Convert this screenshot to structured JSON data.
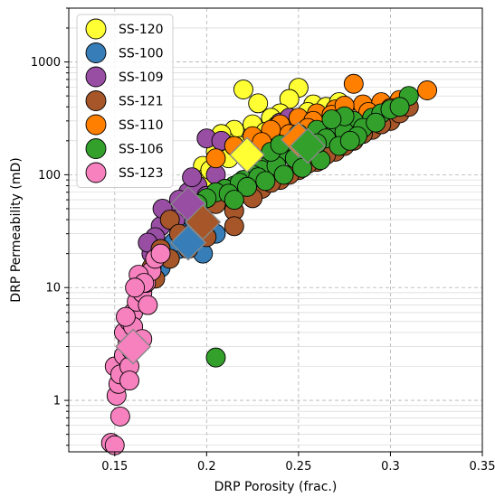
{
  "chart_data": {
    "type": "scatter",
    "xlabel": "DRP Porosity (frac.)",
    "ylabel": "DRP Permeability (mD)",
    "xlim": [
      0.125,
      0.35
    ],
    "ylim": [
      0.35,
      3000
    ],
    "y_scale": "log",
    "x_ticks": [
      0.15,
      0.2,
      0.25,
      0.3,
      0.35
    ],
    "x_tick_labels": [
      "0.15",
      "0.2",
      "0.25",
      "0.3",
      "0.35"
    ],
    "y_ticks": [
      1,
      10,
      100,
      1000
    ],
    "y_tick_labels": [
      "1",
      "10",
      "100",
      "1000"
    ],
    "grid": true,
    "legend_position": "top-left",
    "series": [
      {
        "name": "SS-120",
        "color": "#ffff33",
        "mean": [
          0.222,
          150
        ],
        "points": [
          [
            0.22,
            570
          ],
          [
            0.25,
            590
          ],
          [
            0.228,
            430
          ],
          [
            0.245,
            470
          ],
          [
            0.258,
            420
          ],
          [
            0.265,
            400
          ],
          [
            0.24,
            350
          ],
          [
            0.235,
            320
          ],
          [
            0.225,
            280
          ],
          [
            0.215,
            250
          ],
          [
            0.21,
            200
          ],
          [
            0.205,
            160
          ],
          [
            0.198,
            120
          ],
          [
            0.2,
            95
          ],
          [
            0.218,
            180
          ],
          [
            0.232,
            240
          ],
          [
            0.248,
            300
          ],
          [
            0.268,
            330
          ],
          [
            0.275,
            380
          ],
          [
            0.272,
            440
          ],
          [
            0.255,
            360
          ],
          [
            0.238,
            270
          ],
          [
            0.212,
            140
          ],
          [
            0.202,
            110
          ],
          [
            0.208,
            230
          ],
          [
            0.226,
            200
          ],
          [
            0.228,
            160
          ],
          [
            0.262,
            310
          ]
        ]
      },
      {
        "name": "SS-100",
        "color": "#377eb8",
        "mean": [
          0.19,
          25
        ],
        "points": [
          [
            0.185,
            22
          ],
          [
            0.195,
            28
          ],
          [
            0.2,
            32
          ],
          [
            0.178,
            18
          ],
          [
            0.182,
            25
          ],
          [
            0.19,
            35
          ],
          [
            0.198,
            20
          ],
          [
            0.205,
            30
          ],
          [
            0.175,
            15
          ],
          [
            0.193,
            40
          ]
        ]
      },
      {
        "name": "SS-109",
        "color": "#984ea3",
        "mean": [
          0.19,
          55
        ],
        "points": [
          [
            0.2,
            210
          ],
          [
            0.208,
            200
          ],
          [
            0.215,
            180
          ],
          [
            0.24,
            290
          ],
          [
            0.245,
            320
          ],
          [
            0.19,
            70
          ],
          [
            0.185,
            60
          ],
          [
            0.18,
            45
          ],
          [
            0.175,
            35
          ],
          [
            0.172,
            28
          ],
          [
            0.17,
            20
          ],
          [
            0.195,
            80
          ],
          [
            0.168,
            25
          ],
          [
            0.176,
            50
          ],
          [
            0.183,
            40
          ],
          [
            0.2,
            65
          ],
          [
            0.192,
            95
          ],
          [
            0.205,
            100
          ]
        ]
      },
      {
        "name": "SS-121",
        "color": "#a65628",
        "mean": [
          0.198,
          38
        ],
        "points": [
          [
            0.18,
            40
          ],
          [
            0.19,
            50
          ],
          [
            0.2,
            60
          ],
          [
            0.21,
            65
          ],
          [
            0.22,
            70
          ],
          [
            0.23,
            75
          ],
          [
            0.24,
            90
          ],
          [
            0.25,
            110
          ],
          [
            0.26,
            130
          ],
          [
            0.27,
            160
          ],
          [
            0.28,
            200
          ],
          [
            0.29,
            250
          ],
          [
            0.3,
            300
          ],
          [
            0.185,
            30
          ],
          [
            0.175,
            22
          ],
          [
            0.17,
            15
          ],
          [
            0.172,
            12
          ],
          [
            0.195,
            45
          ],
          [
            0.205,
            55
          ],
          [
            0.215,
            48
          ],
          [
            0.225,
            62
          ],
          [
            0.235,
            85
          ],
          [
            0.245,
            100
          ],
          [
            0.255,
            125
          ],
          [
            0.265,
            150
          ],
          [
            0.275,
            180
          ],
          [
            0.285,
            230
          ],
          [
            0.295,
            280
          ],
          [
            0.305,
            350
          ],
          [
            0.31,
            400
          ],
          [
            0.215,
            35
          ],
          [
            0.2,
            28
          ],
          [
            0.19,
            22
          ],
          [
            0.18,
            18
          ]
        ]
      },
      {
        "name": "SS-110",
        "color": "#ff7f00",
        "mean": [
          0.25,
          205
        ],
        "points": [
          [
            0.28,
            640
          ],
          [
            0.32,
            560
          ],
          [
            0.305,
            460
          ],
          [
            0.285,
            420
          ],
          [
            0.27,
            380
          ],
          [
            0.26,
            350
          ],
          [
            0.25,
            320
          ],
          [
            0.24,
            280
          ],
          [
            0.235,
            250
          ],
          [
            0.225,
            220
          ],
          [
            0.215,
            180
          ],
          [
            0.205,
            140
          ],
          [
            0.258,
            300
          ],
          [
            0.268,
            340
          ],
          [
            0.295,
            440
          ],
          [
            0.3,
            390
          ],
          [
            0.245,
            230
          ],
          [
            0.255,
            260
          ],
          [
            0.275,
            410
          ],
          [
            0.288,
            360
          ],
          [
            0.23,
            195
          ]
        ]
      },
      {
        "name": "SS-106",
        "color": "#33a02c",
        "mean": [
          0.255,
          180
        ],
        "points": [
          [
            0.205,
            2.4
          ],
          [
            0.31,
            500
          ],
          [
            0.29,
            320
          ],
          [
            0.28,
            300
          ],
          [
            0.27,
            280
          ],
          [
            0.26,
            250
          ],
          [
            0.25,
            200
          ],
          [
            0.245,
            170
          ],
          [
            0.24,
            150
          ],
          [
            0.235,
            130
          ],
          [
            0.23,
            110
          ],
          [
            0.225,
            100
          ],
          [
            0.22,
            90
          ],
          [
            0.215,
            80
          ],
          [
            0.21,
            75
          ],
          [
            0.205,
            70
          ],
          [
            0.2,
            62
          ],
          [
            0.195,
            55
          ],
          [
            0.265,
            210
          ],
          [
            0.275,
            240
          ],
          [
            0.285,
            260
          ],
          [
            0.295,
            350
          ],
          [
            0.3,
            380
          ],
          [
            0.255,
            160
          ],
          [
            0.248,
            140
          ],
          [
            0.238,
            120
          ],
          [
            0.228,
            95
          ],
          [
            0.218,
            85
          ],
          [
            0.212,
            68
          ],
          [
            0.222,
            78
          ],
          [
            0.232,
            88
          ],
          [
            0.242,
            100
          ],
          [
            0.252,
            115
          ],
          [
            0.262,
            135
          ],
          [
            0.272,
            180
          ],
          [
            0.282,
            220
          ],
          [
            0.292,
            290
          ],
          [
            0.305,
            400
          ],
          [
            0.235,
            160
          ],
          [
            0.25,
            230
          ],
          [
            0.26,
            190
          ],
          [
            0.24,
            185
          ],
          [
            0.215,
            60
          ],
          [
            0.275,
            330
          ],
          [
            0.268,
            310
          ],
          [
            0.278,
            200
          ]
        ]
      },
      {
        "name": "SS-123",
        "color": "#f781bf",
        "mean": [
          0.16,
          3.0
        ],
        "points": [
          [
            0.148,
            0.42
          ],
          [
            0.15,
            0.4
          ],
          [
            0.153,
            0.72
          ],
          [
            0.151,
            1.1
          ],
          [
            0.152,
            1.4
          ],
          [
            0.15,
            2.0
          ],
          [
            0.153,
            1.7
          ],
          [
            0.155,
            2.5
          ],
          [
            0.157,
            3.2
          ],
          [
            0.155,
            4.0
          ],
          [
            0.158,
            5.0
          ],
          [
            0.16,
            6.0
          ],
          [
            0.162,
            7.5
          ],
          [
            0.165,
            9.0
          ],
          [
            0.167,
            11
          ],
          [
            0.17,
            14
          ],
          [
            0.172,
            18
          ],
          [
            0.175,
            20
          ],
          [
            0.163,
            13
          ],
          [
            0.158,
            2.0
          ],
          [
            0.158,
            1.5
          ],
          [
            0.168,
            7.0
          ],
          [
            0.16,
            4.5
          ],
          [
            0.156,
            5.5
          ],
          [
            0.165,
            3.5
          ],
          [
            0.159,
            2.8
          ],
          [
            0.166,
            11
          ],
          [
            0.161,
            10
          ]
        ]
      }
    ]
  }
}
